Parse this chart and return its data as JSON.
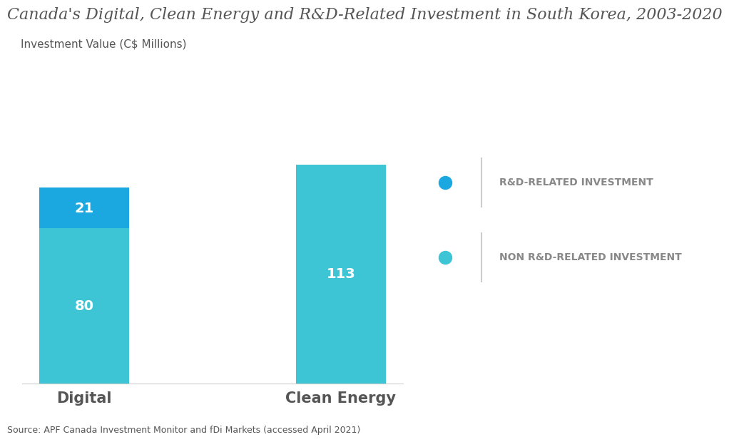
{
  "title": "Canada's Digital, Clean Energy and R&D-Related Investment in South Korea, 2003-2020",
  "ylabel": "Investment Value (C$ Millions)",
  "categories": [
    "Digital",
    "Clean Energy"
  ],
  "non_rd_values": [
    80,
    113
  ],
  "rd_values": [
    21,
    0
  ],
  "color_rd": "#1ba8e0",
  "color_non_rd": "#3dc5d5",
  "legend_rd": "R&D-RELATED INVESTMENT",
  "legend_non_rd": "NON R&D-RELATED INVESTMENT",
  "source_text": "Source: APF Canada Investment Monitor and fDi Markets (accessed April 2021)",
  "bar_width": 0.35,
  "ylim": [
    0,
    140
  ],
  "label_fontsize": 15,
  "value_fontsize": 14,
  "title_fontsize": 16,
  "header_bg": "#ddeef2",
  "background_color": "#ffffff",
  "text_color_white": "#ffffff",
  "text_color_gray": "#888888"
}
